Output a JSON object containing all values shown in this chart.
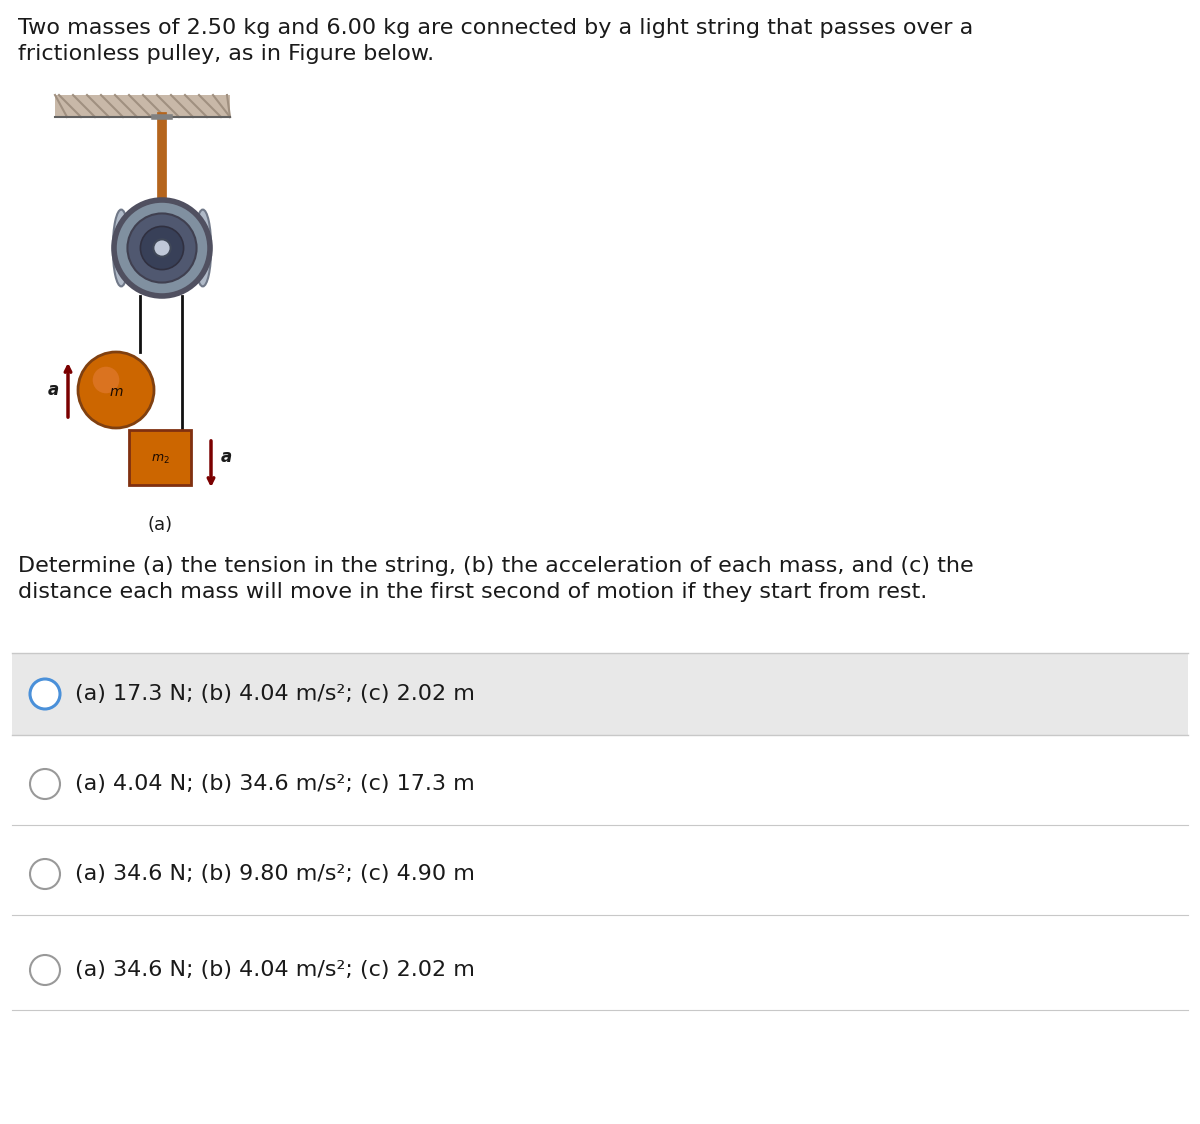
{
  "title_text": "Two masses of 2.50 kg and 6.00 kg are connected by a light string that passes over a\nfrictionless pulley, as in Figure below.",
  "question_text": "Determine (a) the tension in the string, (b) the acceleration of each mass, and (c) the\ndistance each mass will move in the first second of motion if they start from rest.",
  "options": [
    "(a) 17.3 N; (b) 4.04 m/s²; (c) 2.02 m",
    "(a) 4.04 N; (b) 34.6 m/s²; (c) 17.3 m",
    "(a) 34.6 N; (b) 9.80 m/s²; (c) 4.90 m",
    "(a) 34.6 N; (b) 4.04 m/s²; (c) 2.02 m"
  ],
  "selected_option": 0,
  "bg_color": "#ffffff",
  "option_highlight_color": "#e8e8e8",
  "option_border_color": "#c8c8c8",
  "text_color": "#1a1a1a",
  "circle_selected_color": "#4A90D9",
  "circle_unselected_color": "#999999",
  "title_fontsize": 16,
  "question_fontsize": 16,
  "option_fontsize": 16,
  "figure_label": "(a)",
  "arrow_color": "#7B0000",
  "mass1_color": "#CC6600",
  "mass2_color": "#CC6600",
  "string_color": "#111111",
  "ceiling_fill": "#c8a882",
  "ceiling_hatch_color": "#b08060",
  "rod_color": "#b5651d",
  "pulley_outer": "#8090a0",
  "pulley_mid": "#505870",
  "pulley_inner": "#384058",
  "pulley_center_bolt": "#c0c8d8"
}
